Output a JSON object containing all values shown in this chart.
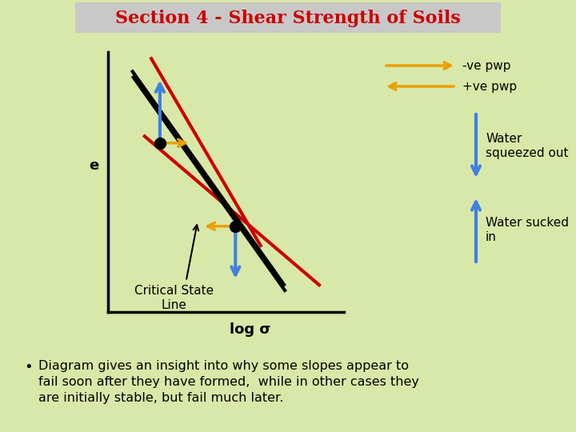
{
  "title": "Section 4 - Shear Strength of Soils",
  "title_color": "#cc0000",
  "title_bg": "#c8c8c8",
  "background_color": "#d8e8a8",
  "bullet_text": "Diagram gives an insight into why some slopes appear to\nfail soon after they have formed,  while in other cases they\nare initially stable, but fail much later.",
  "ylabel": "e",
  "xlabel": "log σ",
  "legend_neg_pwp": "-ve pwp",
  "legend_pos_pwp": "+ve pwp",
  "water_squeezed": "Water\nsqueezed out",
  "water_sucked": "Water sucked\nin",
  "csl_label": "Critical State\nLine",
  "csl_color": "#000000",
  "red_line_color": "#cc0000",
  "orange_color": "#e8a000",
  "blue_color": "#4080e0",
  "dot_color": "#000000"
}
